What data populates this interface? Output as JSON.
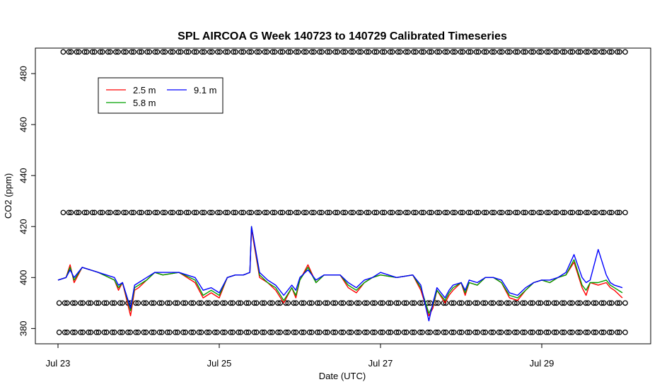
{
  "chart_data": {
    "type": "line",
    "title": "SPL AIRCOA G  Week 140723 to 140729  Calibrated Timeseries",
    "xlabel": "Date (UTC)",
    "ylabel": "CO2 (ppm)",
    "xlim": [
      0,
      7.3
    ],
    "ylim": [
      374,
      490
    ],
    "x_ticks": [
      {
        "value": 0,
        "label": "Jul 23"
      },
      {
        "value": 2,
        "label": "Jul 25"
      },
      {
        "value": 4,
        "label": "Jul 27"
      },
      {
        "value": 6,
        "label": "Jul 29"
      }
    ],
    "y_ticks": [
      380,
      400,
      420,
      440,
      460,
      480
    ],
    "x_units": "days since Jul 23 00:00 UTC",
    "legend_position": "top-left",
    "series": [
      {
        "name": "2.5 m",
        "color": "#ff0000",
        "x": [
          0.0,
          0.1,
          0.15,
          0.2,
          0.3,
          0.5,
          0.7,
          0.75,
          0.8,
          0.9,
          0.95,
          1.0,
          1.1,
          1.2,
          1.3,
          1.5,
          1.7,
          1.8,
          1.9,
          2.0,
          2.1,
          2.2,
          2.3,
          2.38,
          2.4,
          2.5,
          2.6,
          2.7,
          2.8,
          2.9,
          2.95,
          3.0,
          3.1,
          3.2,
          3.3,
          3.5,
          3.6,
          3.7,
          3.8,
          3.9,
          4.0,
          4.2,
          4.4,
          4.5,
          4.6,
          4.65,
          4.7,
          4.8,
          4.85,
          4.9,
          5.0,
          5.05,
          5.1,
          5.2,
          5.3,
          5.4,
          5.5,
          5.6,
          5.7,
          5.8,
          5.9,
          6.0,
          6.1,
          6.2,
          6.3,
          6.4,
          6.5,
          6.55,
          6.6,
          6.7,
          6.8,
          6.85,
          6.9,
          7.0
        ],
        "y": [
          399,
          400,
          405,
          398,
          404,
          402,
          399,
          395,
          398,
          385,
          395,
          396,
          399,
          402,
          401,
          402,
          398,
          392,
          394,
          392,
          400,
          401,
          401,
          402,
          419,
          400,
          398,
          395,
          390,
          396,
          392,
          399,
          405,
          398,
          401,
          401,
          396,
          394,
          398,
          400,
          401,
          400,
          401,
          395,
          385,
          388,
          395,
          390,
          393,
          395,
          398,
          393,
          398,
          397,
          400,
          400,
          398,
          392,
          391,
          395,
          398,
          399,
          398,
          400,
          401,
          406,
          396,
          393,
          398,
          397,
          398,
          396,
          395,
          392
        ]
      },
      {
        "name": "5.8 m",
        "color": "#00a000",
        "x": [
          0.0,
          0.1,
          0.15,
          0.2,
          0.3,
          0.5,
          0.7,
          0.75,
          0.8,
          0.9,
          0.95,
          1.0,
          1.1,
          1.2,
          1.3,
          1.5,
          1.7,
          1.8,
          1.9,
          2.0,
          2.1,
          2.2,
          2.3,
          2.38,
          2.4,
          2.5,
          2.6,
          2.7,
          2.8,
          2.9,
          2.95,
          3.0,
          3.1,
          3.2,
          3.3,
          3.5,
          3.6,
          3.7,
          3.8,
          3.9,
          4.0,
          4.2,
          4.4,
          4.5,
          4.6,
          4.65,
          4.7,
          4.8,
          4.85,
          4.9,
          5.0,
          5.05,
          5.1,
          5.2,
          5.3,
          5.4,
          5.5,
          5.6,
          5.7,
          5.8,
          5.9,
          6.0,
          6.1,
          6.2,
          6.3,
          6.4,
          6.5,
          6.55,
          6.6,
          6.7,
          6.8,
          6.85,
          6.9,
          7.0
        ],
        "y": [
          399,
          400,
          404,
          399,
          404,
          402,
          399,
          396,
          398,
          387,
          396,
          397,
          399,
          402,
          401,
          402,
          399,
          393,
          395,
          393,
          400,
          401,
          401,
          402,
          420,
          401,
          398,
          396,
          391,
          396,
          393,
          399,
          404,
          398,
          401,
          401,
          397,
          395,
          398,
          400,
          401,
          400,
          401,
          396,
          386,
          389,
          395,
          391,
          394,
          396,
          398,
          394,
          398,
          397,
          400,
          400,
          398,
          393,
          392,
          395,
          398,
          399,
          398,
          400,
          401,
          407,
          397,
          395,
          398,
          398,
          399,
          397,
          396,
          394
        ]
      },
      {
        "name": "9.1 m",
        "color": "#0000ff",
        "x": [
          0.0,
          0.1,
          0.15,
          0.2,
          0.3,
          0.5,
          0.7,
          0.75,
          0.8,
          0.9,
          0.95,
          1.0,
          1.1,
          1.2,
          1.3,
          1.5,
          1.7,
          1.8,
          1.9,
          2.0,
          2.1,
          2.2,
          2.3,
          2.38,
          2.4,
          2.5,
          2.6,
          2.7,
          2.8,
          2.9,
          2.95,
          3.0,
          3.1,
          3.2,
          3.3,
          3.5,
          3.6,
          3.7,
          3.8,
          3.9,
          4.0,
          4.2,
          4.4,
          4.5,
          4.6,
          4.65,
          4.7,
          4.8,
          4.85,
          4.9,
          5.0,
          5.05,
          5.1,
          5.2,
          5.3,
          5.4,
          5.5,
          5.6,
          5.7,
          5.8,
          5.9,
          6.0,
          6.1,
          6.2,
          6.3,
          6.4,
          6.5,
          6.55,
          6.6,
          6.7,
          6.8,
          6.85,
          6.9,
          7.0
        ],
        "y": [
          399,
          400,
          403,
          400,
          404,
          402,
          400,
          397,
          398,
          388,
          397,
          398,
          400,
          402,
          402,
          402,
          400,
          395,
          396,
          394,
          400,
          401,
          401,
          402,
          420,
          402,
          399,
          397,
          393,
          397,
          395,
          400,
          403,
          399,
          401,
          401,
          398,
          396,
          399,
          400,
          402,
          400,
          401,
          397,
          383,
          390,
          396,
          392,
          395,
          397,
          398,
          395,
          399,
          398,
          400,
          400,
          399,
          394,
          393,
          396,
          398,
          399,
          399,
          400,
          402,
          409,
          400,
          398,
          399,
          411,
          401,
          398,
          397,
          396
        ]
      }
    ],
    "calibration_series": [
      {
        "y": 488.5,
        "x_start": 0.1,
        "x_end": 7.0,
        "count": 72
      },
      {
        "y": 425.5,
        "x_start": 0.1,
        "x_end": 7.0,
        "count": 72
      },
      {
        "y": 390,
        "x_start": 0.05,
        "x_end": 7.0,
        "count": 72
      },
      {
        "y": 378.5,
        "x_start": 0.05,
        "x_end": 7.0,
        "count": 72
      }
    ]
  }
}
